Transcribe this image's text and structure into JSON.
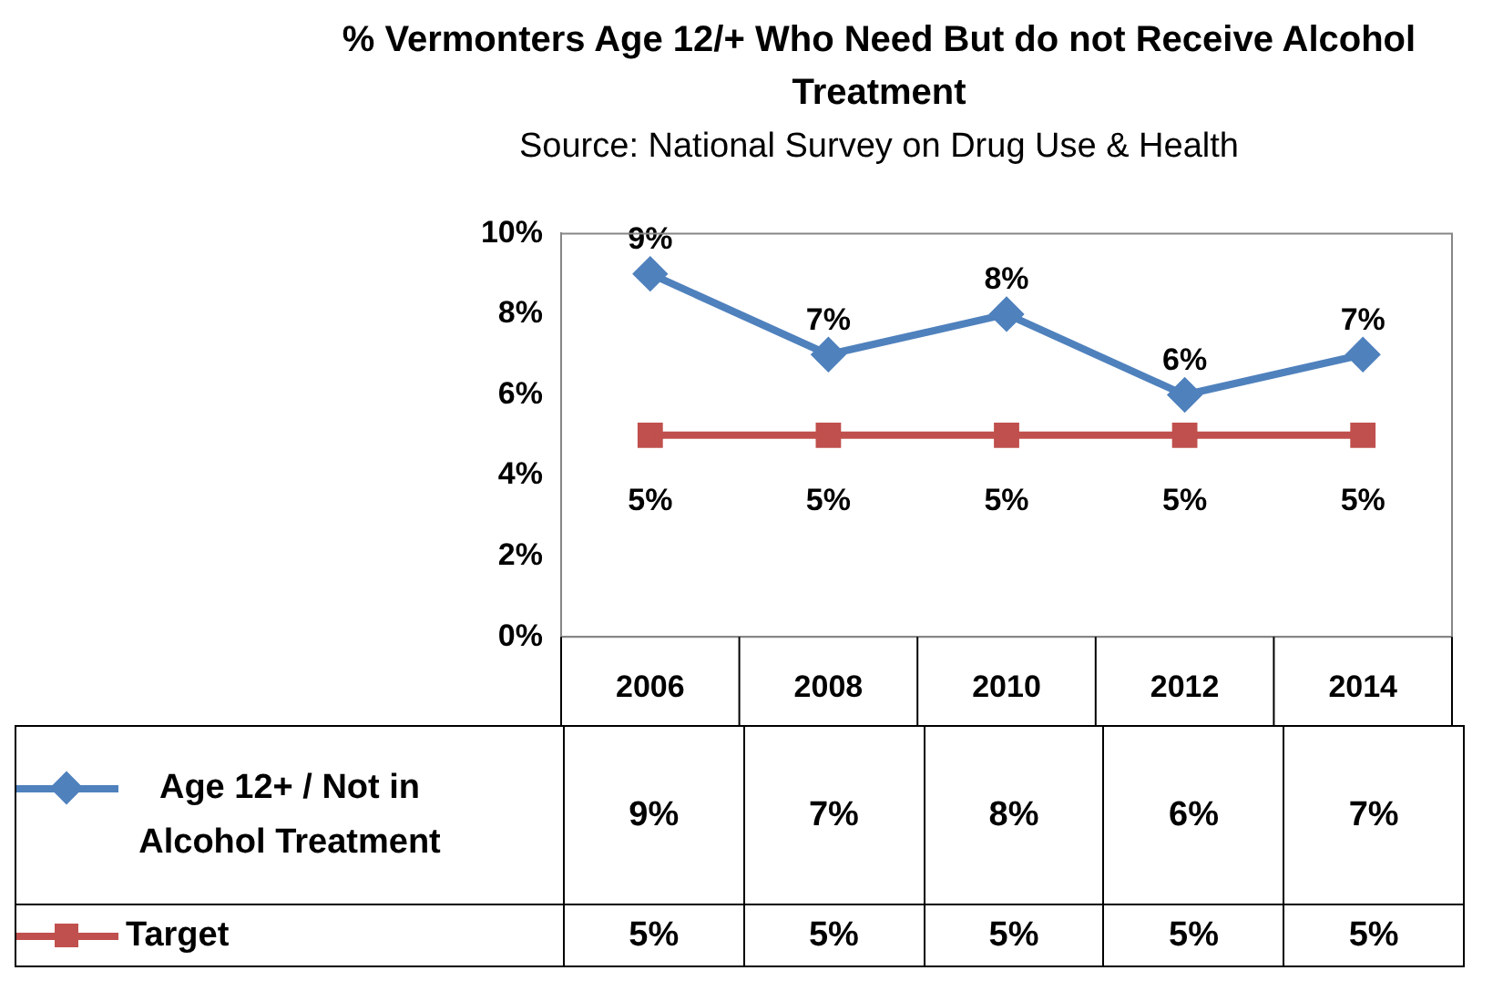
{
  "chart_data": {
    "type": "line",
    "title": "% Vermonters Age 12/+ Who Need But do not Receive Alcohol Treatment",
    "annotations": [
      "Source: National Survey on Drug Use & Health"
    ],
    "categories": [
      "2006",
      "2008",
      "2010",
      "2012",
      "2014"
    ],
    "series": [
      {
        "name": "Age 12+ / Not in Alcohol Treatment",
        "color": "#4f81bd",
        "marker": "diamond",
        "values": [
          9,
          7,
          8,
          6,
          7
        ],
        "value_labels": [
          "9%",
          "7%",
          "8%",
          "6%",
          "7%"
        ]
      },
      {
        "name": "Target",
        "color": "#c0504d",
        "marker": "square",
        "values": [
          5,
          5,
          5,
          5,
          5
        ],
        "value_labels": [
          "5%",
          "5%",
          "5%",
          "5%",
          "5%"
        ]
      }
    ],
    "ylim": [
      0,
      10
    ],
    "yticks": [
      {
        "value": 0,
        "label": "0%"
      },
      {
        "value": 2,
        "label": "2%"
      },
      {
        "value": 4,
        "label": "4%"
      },
      {
        "value": 6,
        "label": "6%"
      },
      {
        "value": 8,
        "label": "8%"
      },
      {
        "value": 10,
        "label": "10%"
      }
    ],
    "grid": false,
    "legend": "bottom"
  }
}
